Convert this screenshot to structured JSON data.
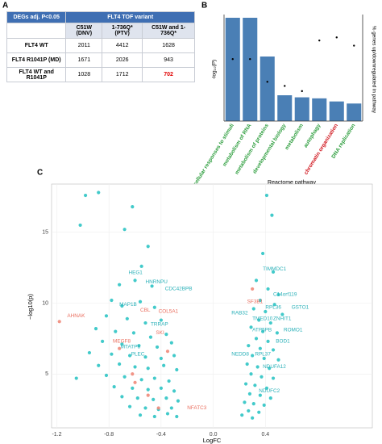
{
  "panels": [
    "A",
    "B",
    "C"
  ],
  "table": {
    "header": [
      "DEGs adj. P<0.05",
      "FLT4 TOF variant"
    ],
    "columns": [
      "C51W (DNV)",
      "1-736Q* (PTV)",
      "C51W and 1-736Q*"
    ],
    "rows": [
      [
        "FLT4 WT",
        2011,
        4412,
        1628
      ],
      [
        "FLT4 R1041P (MD)",
        1671,
        2026,
        943
      ],
      [
        "FLT4 WT and R1041P",
        1028,
        1712,
        702
      ]
    ],
    "highlight": {
      "row": 2,
      "col": 3,
      "color": "#e00000"
    }
  },
  "chart_data": [
    {
      "type": "bar",
      "categories": [
        "cellular responses to stimuli",
        "metabolism of RNA",
        "metabolism of proteins",
        "developmental biology",
        "metabolism",
        "autophagy",
        "chromatin organization",
        "DNA replication"
      ],
      "category_colors": [
        "#2e9e3e",
        "#2e9e3e",
        "#2e9e3e",
        "#2e9e3e",
        "#2e9e3e",
        "#2e9e3e",
        "#d0141c",
        "#2e9e3e"
      ],
      "series": [
        {
          "color": "#4a7fb5",
          "values": [
            100,
            100,
            62.5,
            25,
            23,
            22,
            19,
            17
          ]
        },
        {
          "color": "#000000",
          "axis": "y2",
          "values": [
            60,
            60,
            38,
            34,
            29,
            78,
            81,
            73
          ]
        }
      ],
      "ylim": [
        0,
        100
      ],
      "y2lim": [
        0,
        100
      ],
      "ylabel": "-log₁₀(P)",
      "y2label": "% genes up/downregulated in pathway",
      "xlabel": "Reactome pathway"
    },
    {
      "type": "scatter",
      "xlabel": "LogFC",
      "ylabel": "−log10(p)",
      "xlim": [
        -1.24,
        1.22
      ],
      "ylim": [
        1.2,
        18.4
      ],
      "xticks": [
        -1.2,
        -0.8,
        -0.4,
        {
          "value": 0,
          "label": "0.0"
        },
        0.4
      ],
      "yticks": [
        5,
        10,
        15
      ],
      "grid": true,
      "series": [
        {
          "color": "#2ec4c4",
          "x": [
            -0.98,
            -0.88,
            -0.62,
            -1.02,
            -0.68,
            -0.5,
            -0.55,
            -0.72,
            -0.6,
            -0.47,
            -0.78,
            -0.7,
            -0.56,
            -0.45,
            -0.82,
            -0.66,
            -0.52,
            -0.4,
            -0.9,
            -0.75,
            -0.61,
            -0.48,
            -0.36,
            -0.85,
            -0.7,
            -0.57,
            -0.43,
            -0.32,
            -0.95,
            -0.78,
            -0.64,
            -0.52,
            -0.4,
            -0.3,
            -0.88,
            -0.72,
            -0.6,
            -0.5,
            -0.38,
            -0.28,
            -1.05,
            -0.82,
            -0.68,
            -0.55,
            -0.45,
            -0.34,
            -0.76,
            -0.62,
            -0.5,
            -0.4,
            -0.3,
            -0.7,
            -0.58,
            -0.46,
            -0.36,
            -0.27,
            -0.64,
            -0.52,
            -0.42,
            -0.32,
            -0.56,
            -0.45,
            -0.35,
            -0.28,
            0.41,
            0.45,
            0.38,
            0.46,
            0.33,
            0.42,
            0.5,
            0.36,
            0.47,
            0.31,
            0.4,
            0.53,
            0.35,
            0.44,
            0.29,
            0.38,
            0.49,
            0.33,
            0.42,
            0.27,
            0.36,
            0.46,
            0.3,
            0.39,
            0.5,
            0.26,
            0.34,
            0.43,
            0.29,
            0.37,
            0.46,
            0.25,
            0.32,
            0.41,
            0.28,
            0.36,
            0.44,
            0.24,
            0.31,
            0.39,
            0.27,
            0.35,
            0.22,
            0.3
          ],
          "y": [
            17.6,
            17.8,
            16.8,
            15.5,
            15.2,
            14,
            12.6,
            11.3,
            11.6,
            11.2,
            10.2,
            9.8,
            10.1,
            9.7,
            9.1,
            8.9,
            8.6,
            8.8,
            8.2,
            8,
            7.9,
            7.6,
            7.8,
            7.3,
            7.1,
            7,
            6.9,
            7.2,
            6.5,
            6.4,
            6.3,
            6.2,
            6.1,
            6.3,
            5.6,
            5.7,
            5.5,
            5.4,
            5.6,
            5.3,
            4.7,
            4.9,
            4.8,
            4.6,
            4.7,
            4.5,
            4.1,
            4,
            3.9,
            4,
            3.8,
            3.4,
            3.3,
            3.2,
            3.3,
            3.1,
            2.7,
            2.6,
            2.5,
            2.6,
            2.1,
            2,
            2.2,
            2,
            17.6,
            16.2,
            13.5,
            12.2,
            11.6,
            11,
            10.6,
            10.2,
            9.9,
            9.6,
            9.4,
            9.2,
            8.8,
            8.6,
            8.3,
            8,
            7.9,
            7.5,
            7.3,
            7,
            6.8,
            6.7,
            6.3,
            6.1,
            6,
            5.7,
            5.5,
            5.4,
            5,
            4.8,
            4.7,
            4.3,
            4.2,
            4,
            3.6,
            3.5,
            3.3,
            3,
            2.9,
            2.8,
            2.4,
            2.3,
            2.1,
            1.9
          ]
        },
        {
          "color": "#f08a7a",
          "x": [
            -1.18,
            -0.35,
            -0.62,
            -0.5,
            -0.42,
            -0.72,
            0.3,
            -0.6
          ],
          "y": [
            8.7,
            6.6,
            5,
            3.5,
            2.6,
            6.8,
            11,
            4.4
          ]
        }
      ],
      "annotations": [
        {
          "text": "HEG1",
          "x": -0.65,
          "y": 12.16,
          "color": "#2ab0b8"
        },
        {
          "text": "HNRNPU",
          "x": -0.52,
          "y": 11.5,
          "color": "#2ab0b8"
        },
        {
          "text": "CDC42BPB",
          "x": -0.37,
          "y": 11,
          "color": "#2ab0b8"
        },
        {
          "text": "MAP1B",
          "x": -0.72,
          "y": 9.9,
          "color": "#2ab0b8"
        },
        {
          "text": "CBL",
          "x": -0.56,
          "y": 9.5,
          "color": "#ea6f5f"
        },
        {
          "text": "COL5A1",
          "x": -0.42,
          "y": 9.4,
          "color": "#ea6f5f"
        },
        {
          "text": "TRRAP",
          "x": -0.48,
          "y": 8.5,
          "color": "#2ab0b8"
        },
        {
          "text": "SKI",
          "x": -0.44,
          "y": 7.9,
          "color": "#ea6f5f"
        },
        {
          "text": "AHNAK",
          "x": -1.12,
          "y": 9.1,
          "color": "#ea6f5f"
        },
        {
          "text": "MEGF8",
          "x": -0.77,
          "y": 7.3,
          "color": "#ea6f5f"
        },
        {
          "text": "MTATP6",
          "x": -0.71,
          "y": 6.9,
          "color": "#2ab0b8"
        },
        {
          "text": "PLEC",
          "x": -0.63,
          "y": 6.4,
          "color": "#2ab0b8"
        },
        {
          "text": "NFATC3",
          "x": -0.2,
          "y": 2.6,
          "color": "#ea6f5f"
        },
        {
          "text": "TIMMDC1",
          "x": 0.38,
          "y": 12.4,
          "color": "#2ab0b8"
        },
        {
          "text": "C14orf119",
          "x": 0.46,
          "y": 10.6,
          "color": "#2ab0b8"
        },
        {
          "text": "SF3B1",
          "x": 0.26,
          "y": 10.1,
          "color": "#ea6f5f"
        },
        {
          "text": "RPL36",
          "x": 0.4,
          "y": 9.7,
          "color": "#2ab0b8"
        },
        {
          "text": "GSTO1",
          "x": 0.6,
          "y": 9.7,
          "color": "#2ab0b8"
        },
        {
          "text": "RAB32",
          "x": 0.14,
          "y": 9.3,
          "color": "#2ab0b8"
        },
        {
          "text": "TMED10",
          "x": 0.3,
          "y": 8.9,
          "color": "#2ab0b8"
        },
        {
          "text": "ZNHIT1",
          "x": 0.46,
          "y": 8.9,
          "color": "#2ab0b8"
        },
        {
          "text": "ATP5PB",
          "x": 0.3,
          "y": 8.1,
          "color": "#2ab0b8"
        },
        {
          "text": "ROMO1",
          "x": 0.54,
          "y": 8.1,
          "color": "#2ab0b8"
        },
        {
          "text": "BOD1",
          "x": 0.48,
          "y": 7.3,
          "color": "#2ab0b8"
        },
        {
          "text": "NEDD8",
          "x": 0.14,
          "y": 6.4,
          "color": "#2ab0b8"
        },
        {
          "text": "RPL37",
          "x": 0.32,
          "y": 6.4,
          "color": "#2ab0b8"
        },
        {
          "text": "NDUFA12",
          "x": 0.38,
          "y": 5.5,
          "color": "#2ab0b8"
        },
        {
          "text": "NDUFC2",
          "x": 0.35,
          "y": 3.8,
          "color": "#2ab0b8"
        }
      ]
    }
  ]
}
